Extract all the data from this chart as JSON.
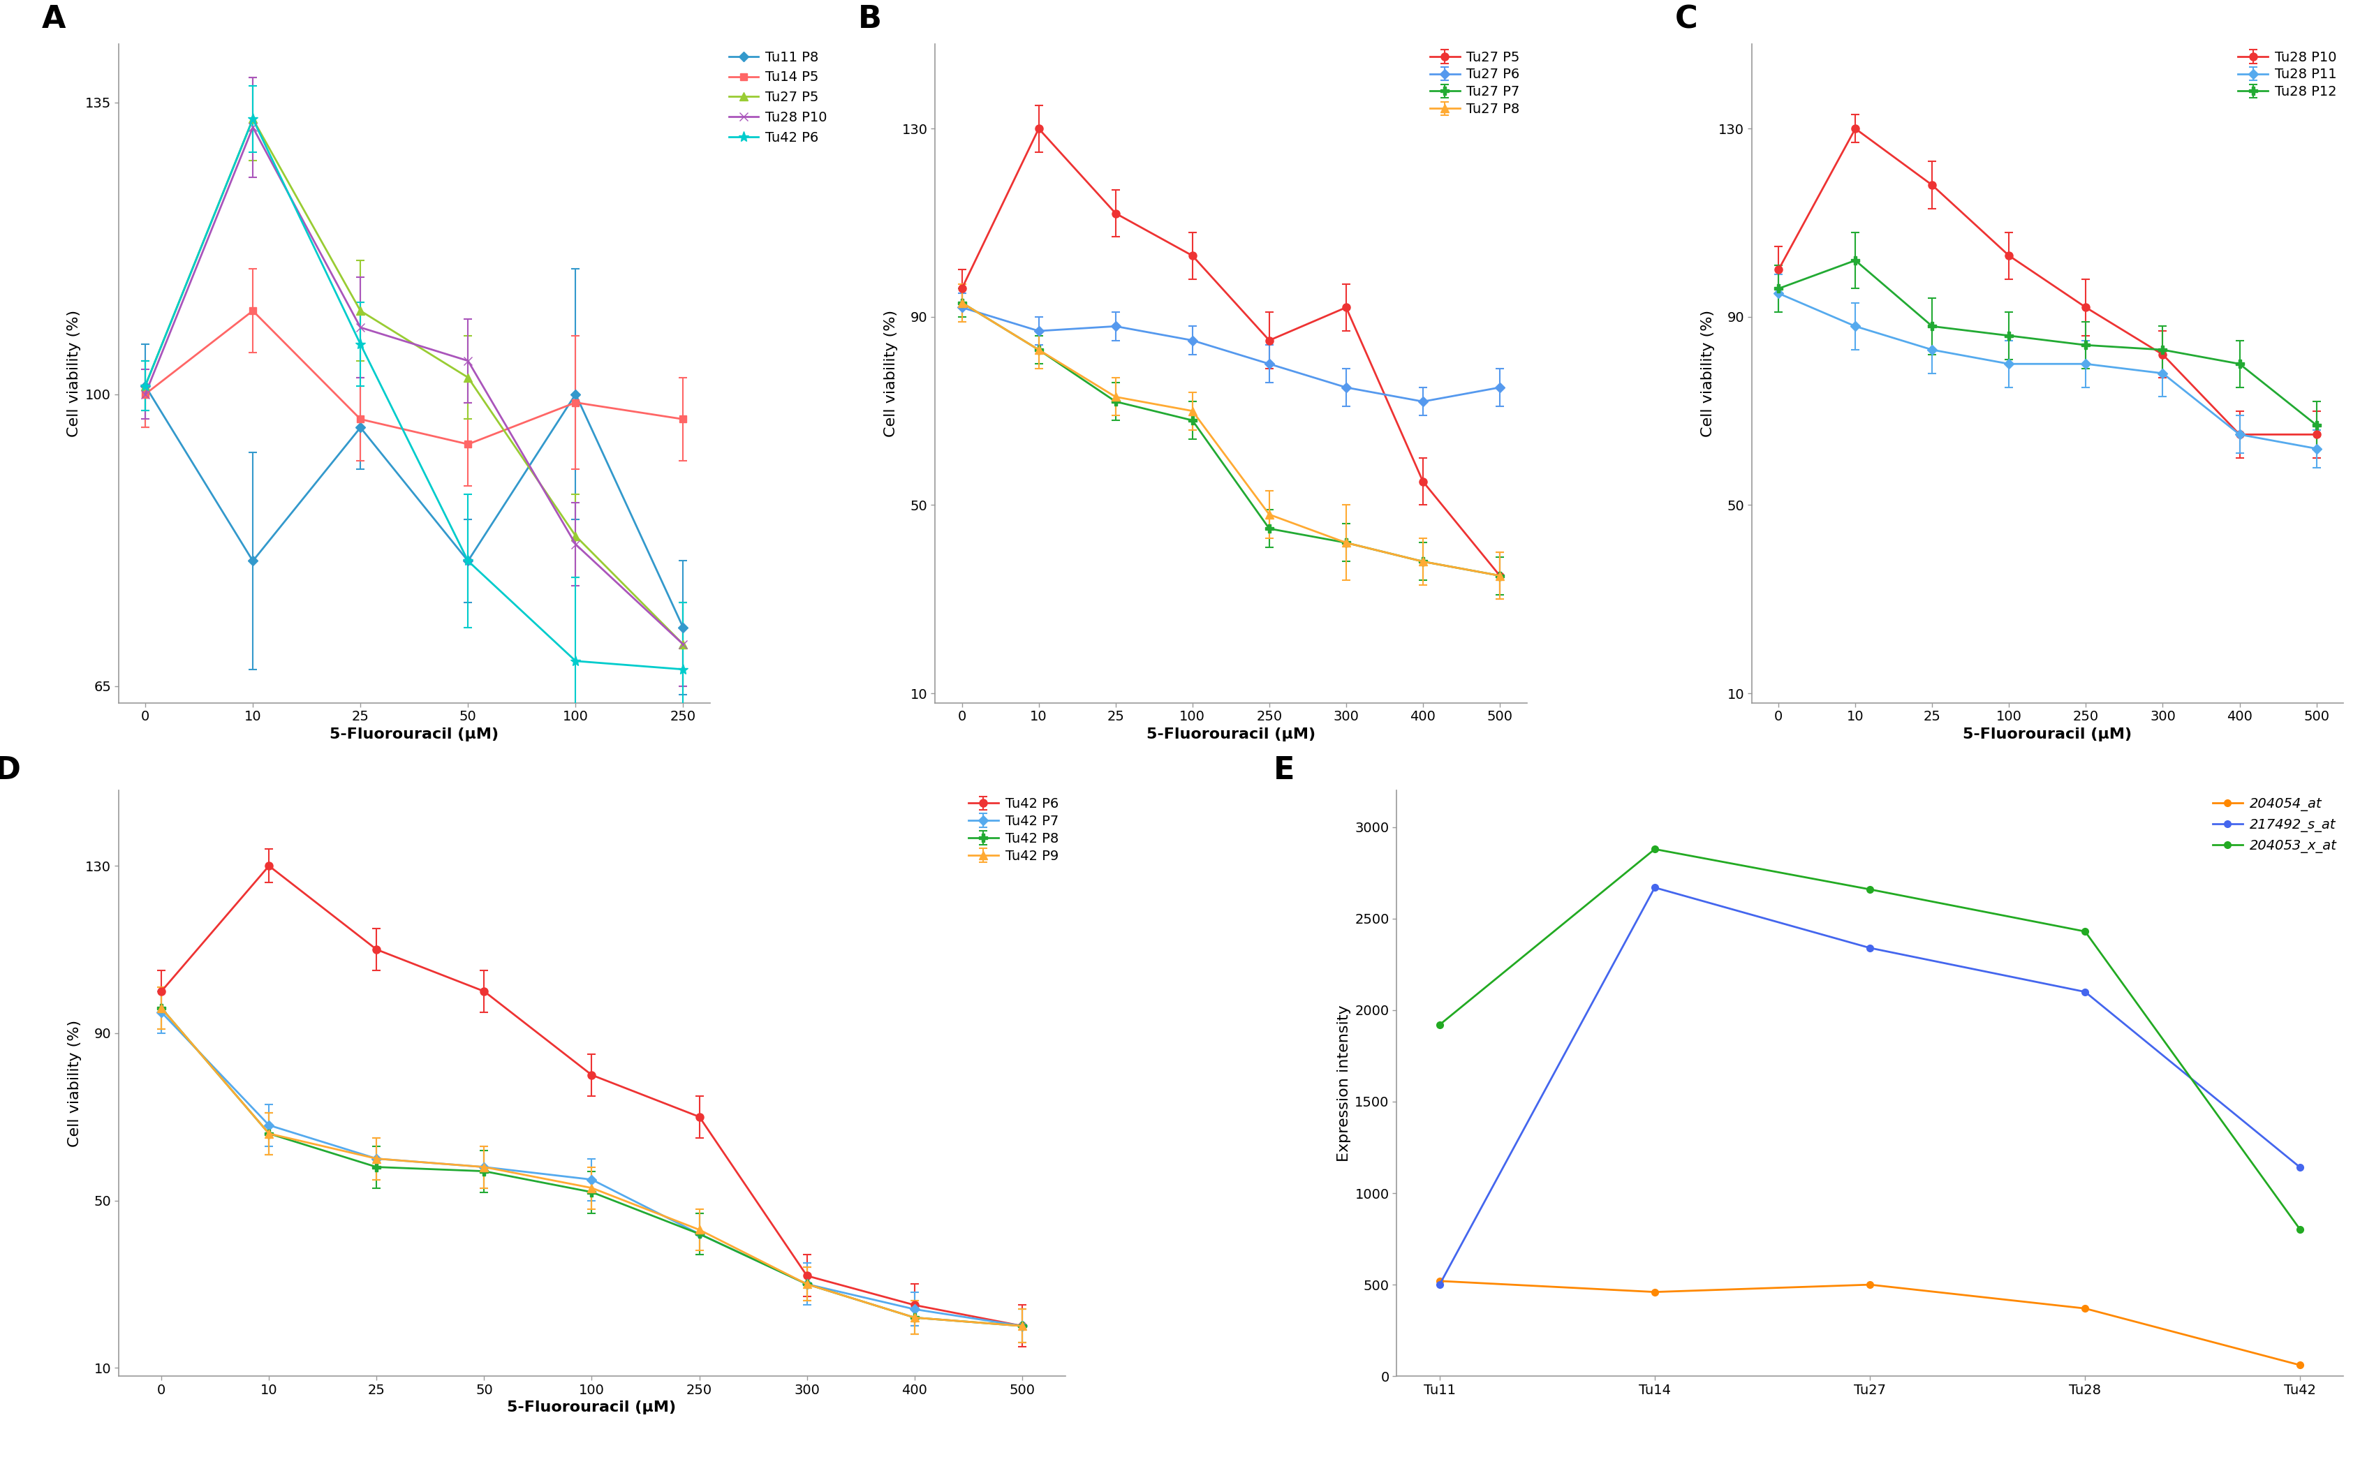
{
  "panel_A": {
    "xlabel": "5-Fluorouracil (μM)",
    "ylabel": "Cell viability (%)",
    "label": "A",
    "ylim": [
      63,
      142
    ],
    "yticks": [
      65,
      100,
      135
    ],
    "xtick_labels": [
      "0",
      "10",
      "25",
      "50",
      "100",
      "250"
    ],
    "series": [
      {
        "label": "Tu11 P8",
        "color": "#3399CC",
        "marker": "D",
        "markersize": 7,
        "x": [
          0,
          1,
          2,
          3,
          4,
          5
        ],
        "y": [
          101,
          80,
          96,
          80,
          100,
          72
        ],
        "yerr": [
          5,
          13,
          5,
          5,
          15,
          8
        ]
      },
      {
        "label": "Tu14 P5",
        "color": "#FF6666",
        "marker": "s",
        "markersize": 7,
        "x": [
          0,
          1,
          2,
          3,
          4,
          5
        ],
        "y": [
          100,
          110,
          97,
          94,
          99,
          97
        ],
        "yerr": [
          4,
          5,
          5,
          5,
          8,
          5
        ]
      },
      {
        "label": "Tu27 P5",
        "color": "#99CC33",
        "marker": "^",
        "markersize": 8,
        "x": [
          0,
          1,
          2,
          3,
          4,
          5
        ],
        "y": [
          101,
          133,
          110,
          102,
          83,
          70
        ],
        "yerr": [
          3,
          5,
          6,
          5,
          5,
          5
        ]
      },
      {
        "label": "Tu28 P10",
        "color": "#AA55BB",
        "marker": "x",
        "markersize": 9,
        "x": [
          0,
          1,
          2,
          3,
          4,
          5
        ],
        "y": [
          100,
          132,
          108,
          104,
          82,
          70
        ],
        "yerr": [
          3,
          6,
          6,
          5,
          5,
          5
        ]
      },
      {
        "label": "Tu42 P6",
        "color": "#00CCCC",
        "marker": "*",
        "markersize": 11,
        "x": [
          0,
          1,
          2,
          3,
          4,
          5
        ],
        "y": [
          101,
          133,
          106,
          80,
          68,
          67
        ],
        "yerr": [
          3,
          4,
          5,
          8,
          10,
          8
        ]
      }
    ]
  },
  "panel_B": {
    "xlabel": "5-Fluorouracil (μM)",
    "ylabel": "Cell viability (%)",
    "label": "B",
    "ylim": [
      8,
      148
    ],
    "yticks": [
      10,
      50,
      90,
      130
    ],
    "xtick_labels": [
      "0",
      "10",
      "25",
      "100",
      "250",
      "300",
      "400",
      "500"
    ],
    "series": [
      {
        "label": "Tu27 P5",
        "color": "#EE3333",
        "marker": "o",
        "markersize": 8,
        "x": [
          0,
          1,
          2,
          3,
          4,
          5,
          6,
          7
        ],
        "y": [
          96,
          130,
          112,
          103,
          85,
          92,
          55,
          35
        ],
        "yerr": [
          4,
          5,
          5,
          5,
          6,
          5,
          5,
          5
        ]
      },
      {
        "label": "Tu27 P6",
        "color": "#5599EE",
        "marker": "D",
        "markersize": 7,
        "x": [
          0,
          1,
          2,
          3,
          4,
          5,
          6,
          7
        ],
        "y": [
          92,
          87,
          88,
          85,
          80,
          75,
          72,
          75
        ],
        "yerr": [
          3,
          3,
          3,
          3,
          4,
          4,
          3,
          4
        ]
      },
      {
        "label": "Tu27 P7",
        "color": "#22AA33",
        "marker": "P",
        "markersize": 8,
        "x": [
          0,
          1,
          2,
          3,
          4,
          5,
          6,
          7
        ],
        "y": [
          93,
          83,
          72,
          68,
          45,
          42,
          38,
          35
        ],
        "yerr": [
          3,
          3,
          4,
          4,
          4,
          4,
          4,
          4
        ]
      },
      {
        "label": "Tu27 P8",
        "color": "#FFAA33",
        "marker": "^",
        "markersize": 8,
        "x": [
          0,
          1,
          2,
          3,
          4,
          5,
          6,
          7
        ],
        "y": [
          93,
          83,
          73,
          70,
          48,
          42,
          38,
          35
        ],
        "yerr": [
          4,
          4,
          4,
          4,
          5,
          8,
          5,
          5
        ]
      }
    ]
  },
  "panel_C": {
    "xlabel": "5-Fluorouracil (μM)",
    "ylabel": "Cell viability (%)",
    "label": "C",
    "ylim": [
      8,
      148
    ],
    "yticks": [
      10,
      50,
      90,
      130
    ],
    "xtick_labels": [
      "0",
      "10",
      "25",
      "100",
      "250",
      "300",
      "400",
      "500"
    ],
    "series": [
      {
        "label": "Tu28 P10",
        "color": "#EE3333",
        "marker": "o",
        "markersize": 8,
        "x": [
          0,
          1,
          2,
          3,
          4,
          5,
          6,
          7
        ],
        "y": [
          100,
          130,
          118,
          103,
          92,
          82,
          65,
          65
        ],
        "yerr": [
          5,
          3,
          5,
          5,
          6,
          5,
          5,
          5
        ]
      },
      {
        "label": "Tu28 P11",
        "color": "#55AAEE",
        "marker": "D",
        "markersize": 7,
        "x": [
          0,
          1,
          2,
          3,
          4,
          5,
          6,
          7
        ],
        "y": [
          95,
          88,
          83,
          80,
          80,
          78,
          65,
          62
        ],
        "yerr": [
          4,
          5,
          5,
          5,
          5,
          5,
          4,
          4
        ]
      },
      {
        "label": "Tu28 P12",
        "color": "#22AA33",
        "marker": "P",
        "markersize": 8,
        "x": [
          0,
          1,
          2,
          3,
          4,
          5,
          6,
          7
        ],
        "y": [
          96,
          102,
          88,
          86,
          84,
          83,
          80,
          67
        ],
        "yerr": [
          5,
          6,
          6,
          5,
          5,
          5,
          5,
          5
        ]
      }
    ]
  },
  "panel_D": {
    "xlabel": "5-Fluorouracil (μM)",
    "ylabel": "Cell viability (%)",
    "label": "D",
    "ylim": [
      8,
      148
    ],
    "yticks": [
      10,
      50,
      90,
      130
    ],
    "xtick_labels": [
      "0",
      "10",
      "25",
      "50",
      "100",
      "250",
      "300",
      "400",
      "500"
    ],
    "series": [
      {
        "label": "Tu42 P6",
        "color": "#EE3333",
        "marker": "o",
        "markersize": 8,
        "x": [
          0,
          1,
          2,
          3,
          4,
          5,
          6,
          7,
          8
        ],
        "y": [
          100,
          130,
          110,
          100,
          80,
          70,
          32,
          25,
          20
        ],
        "yerr": [
          5,
          4,
          5,
          5,
          5,
          5,
          5,
          5,
          5
        ]
      },
      {
        "label": "Tu42 P7",
        "color": "#55AAEE",
        "marker": "D",
        "markersize": 7,
        "x": [
          0,
          1,
          2,
          3,
          4,
          5,
          6,
          7,
          8
        ],
        "y": [
          95,
          68,
          60,
          58,
          55,
          42,
          30,
          24,
          20
        ],
        "yerr": [
          5,
          5,
          5,
          5,
          5,
          5,
          5,
          4,
          4
        ]
      },
      {
        "label": "Tu42 P8",
        "color": "#22AA33",
        "marker": "P",
        "markersize": 8,
        "x": [
          0,
          1,
          2,
          3,
          4,
          5,
          6,
          7,
          8
        ],
        "y": [
          96,
          66,
          58,
          57,
          52,
          42,
          30,
          22,
          20
        ],
        "yerr": [
          5,
          5,
          5,
          5,
          5,
          5,
          4,
          4,
          4
        ]
      },
      {
        "label": "Tu42 P9",
        "color": "#FFAA33",
        "marker": "^",
        "markersize": 8,
        "x": [
          0,
          1,
          2,
          3,
          4,
          5,
          6,
          7,
          8
        ],
        "y": [
          96,
          66,
          60,
          58,
          53,
          43,
          30,
          22,
          20
        ],
        "yerr": [
          5,
          5,
          5,
          5,
          5,
          5,
          4,
          4,
          4
        ]
      }
    ]
  },
  "panel_E": {
    "xlabel": "",
    "ylabel": "Expression intensity",
    "label": "E",
    "ylim": [
      0,
      3200
    ],
    "yticks": [
      0,
      500,
      1000,
      1500,
      2000,
      2500,
      3000
    ],
    "xtick_labels": [
      "Tu11",
      "Tu14",
      "Tu27",
      "Tu28",
      "Tu42"
    ],
    "series": [
      {
        "label": "204054_at",
        "color": "#FF8800",
        "marker": "o",
        "markersize": 7,
        "x": [
          0,
          1,
          2,
          3,
          4
        ],
        "y": [
          520,
          460,
          500,
          370,
          60
        ]
      },
      {
        "label": "217492_s_at",
        "color": "#4466EE",
        "marker": "o",
        "markersize": 7,
        "x": [
          0,
          1,
          2,
          3,
          4
        ],
        "y": [
          500,
          2670,
          2340,
          2100,
          1140
        ]
      },
      {
        "label": "204053_x_at",
        "color": "#22AA22",
        "marker": "o",
        "markersize": 7,
        "x": [
          0,
          1,
          2,
          3,
          4
        ],
        "y": [
          1920,
          2880,
          2660,
          2430,
          800
        ]
      }
    ]
  },
  "background_color": "#ffffff",
  "label_fontsize": 32,
  "axis_fontsize": 16,
  "tick_fontsize": 14,
  "legend_fontsize": 14
}
